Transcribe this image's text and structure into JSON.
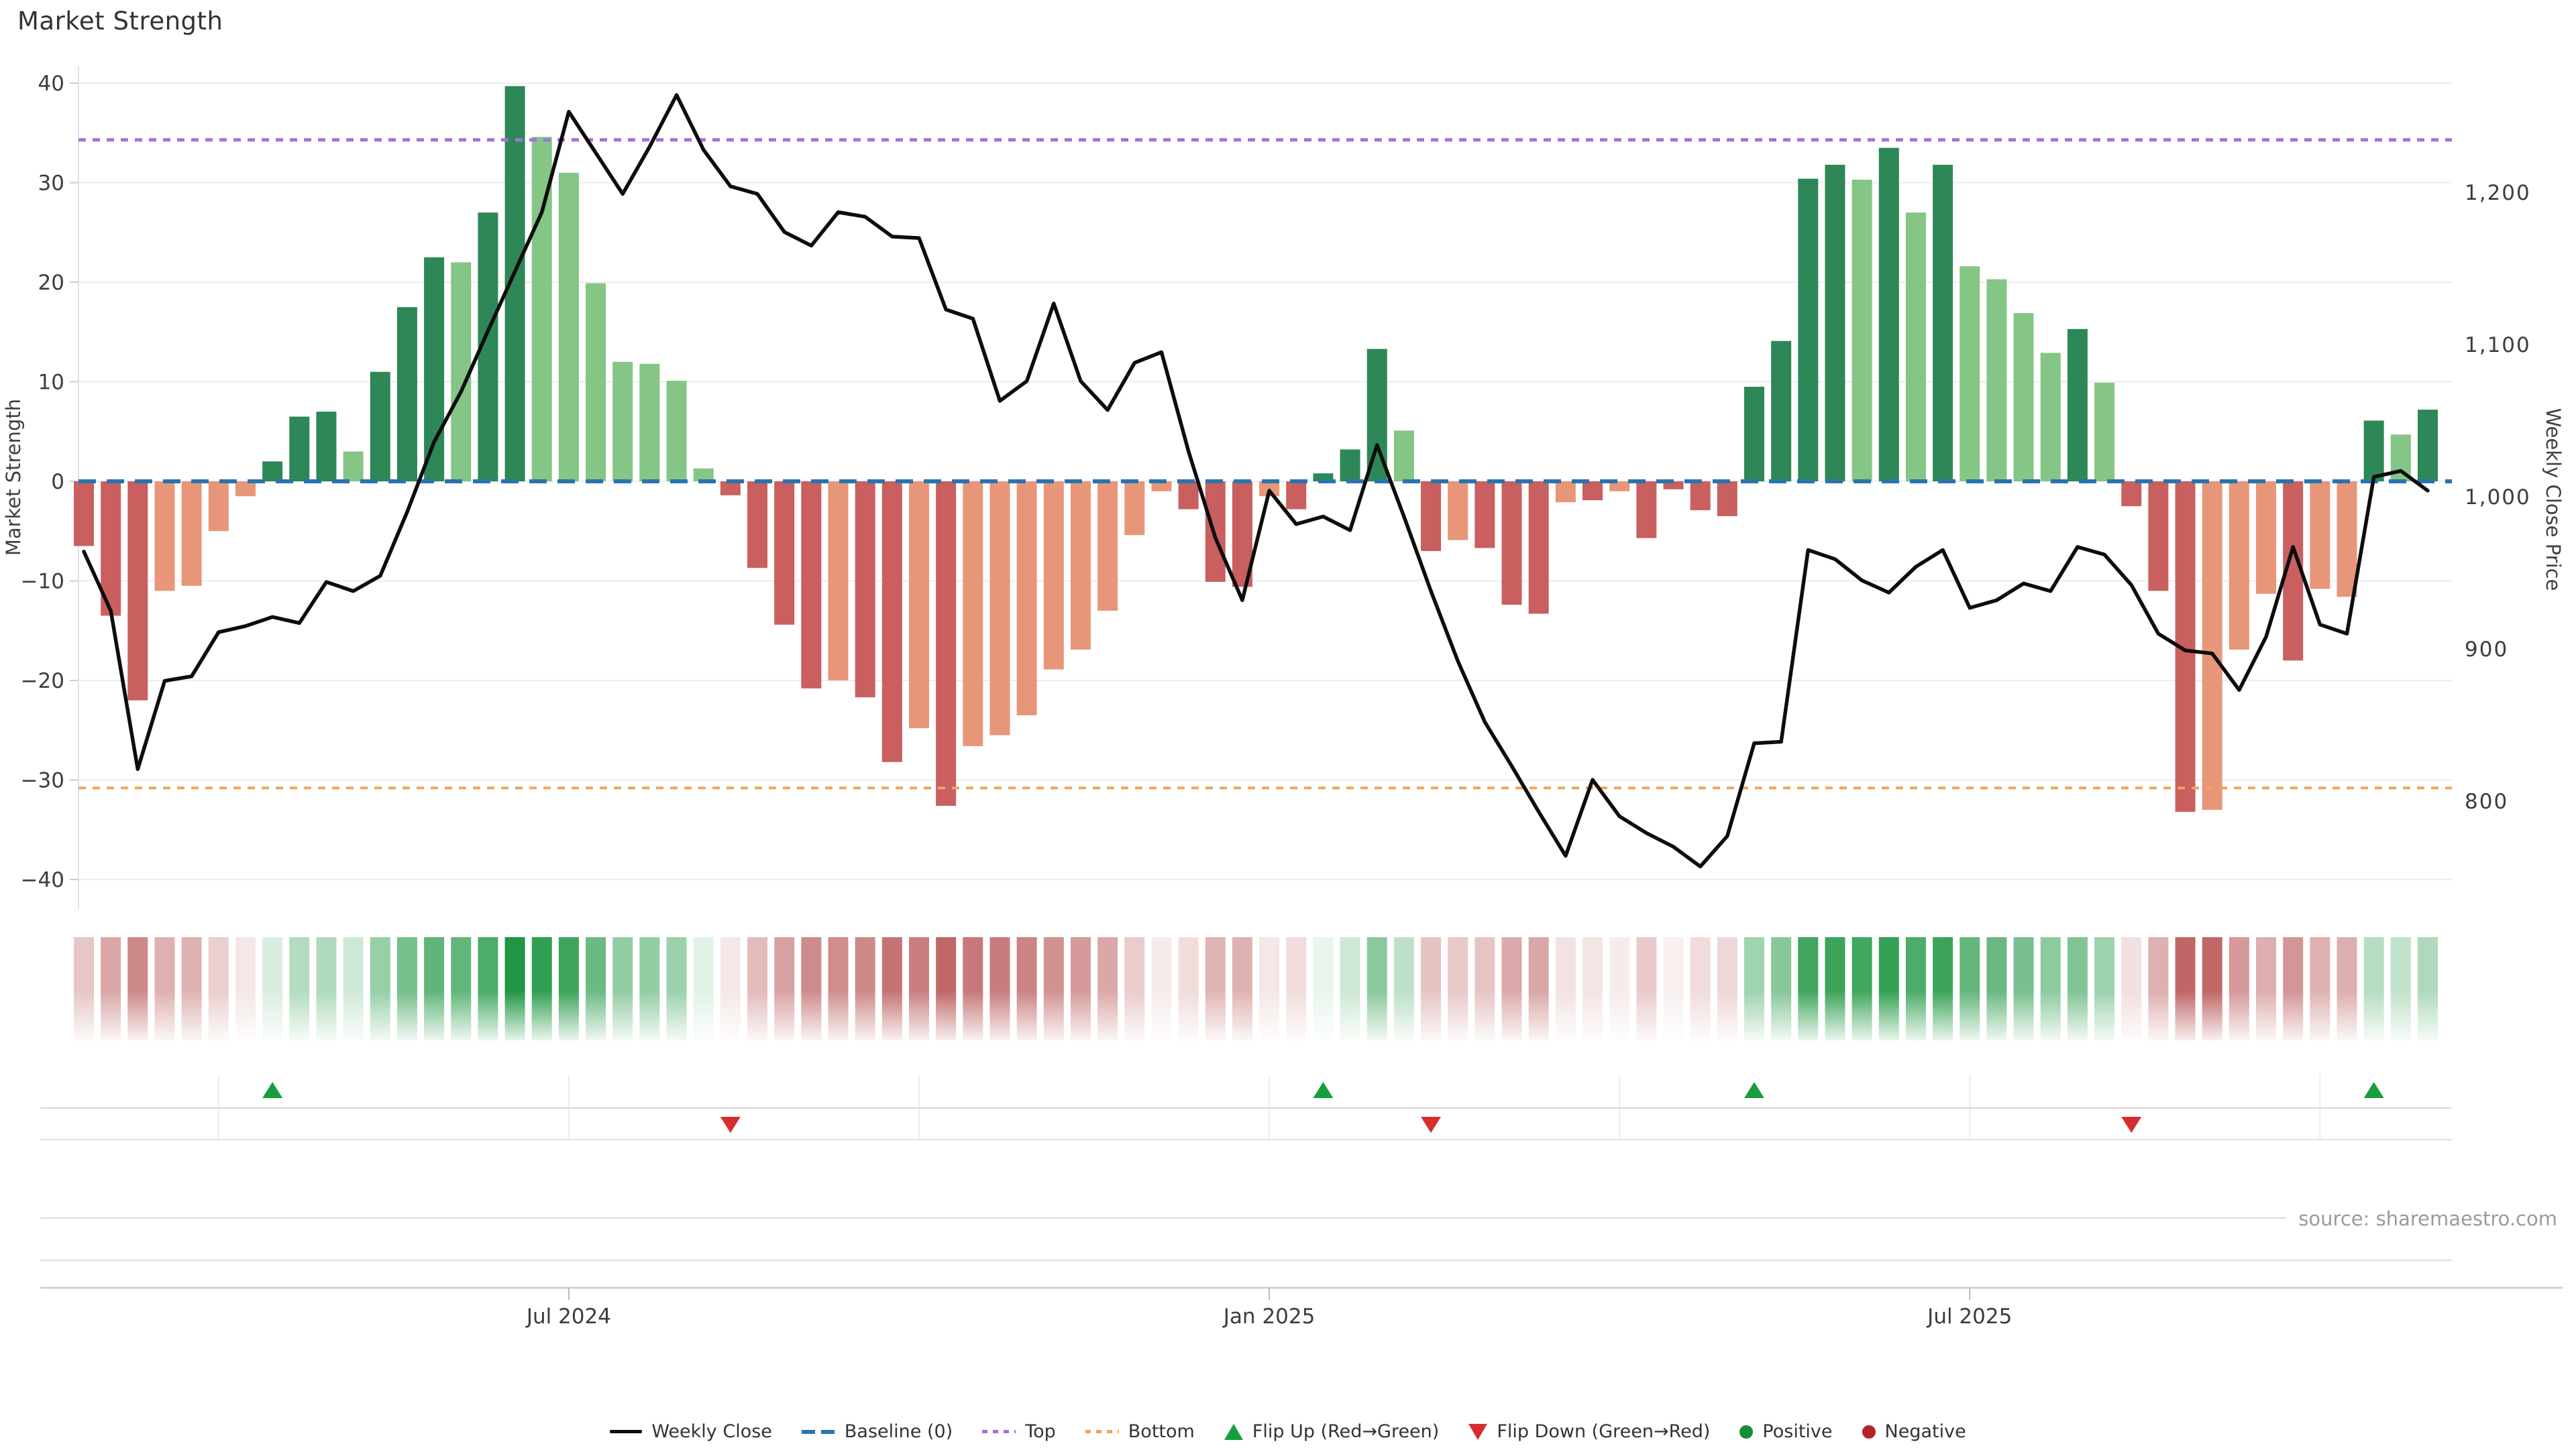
{
  "title": "Market Strength",
  "source": "source: sharemaestro.com",
  "colors": {
    "dg": "#2e8757",
    "lg": "#85c585",
    "dr": "#c95f5f",
    "sr": "#e8967a",
    "line": "#0d0d0d",
    "baseline": "#2a74ae",
    "top": "#a86fdd",
    "bottom": "#f0a35e",
    "flip_up": "#169e3e",
    "flip_down": "#d62e2e",
    "grid": "#ebedf0",
    "spine": "#dfe2e6",
    "axis_text": "#3c3c3c",
    "heat_pos": "#1e9641",
    "heat_neg": "#b85454"
  },
  "legend": {
    "items": [
      {
        "icon": "weekly-close-line-icon",
        "label": "Weekly Close"
      },
      {
        "icon": "baseline-dash-icon",
        "label": "Baseline (0)"
      },
      {
        "icon": "top-dotted-icon",
        "label": "Top"
      },
      {
        "icon": "bottom-dotted-icon",
        "label": "Bottom"
      },
      {
        "icon": "flip-up-triangle-icon",
        "label": "Flip Up (Red→Green)"
      },
      {
        "icon": "flip-down-triangle-icon",
        "label": "Flip Down (Green→Red)"
      },
      {
        "icon": "positive-circle-icon",
        "label": "Positive"
      },
      {
        "icon": "negative-circle-icon",
        "label": "Negative"
      }
    ]
  },
  "chart_data": {
    "type": "bar+line",
    "title": "Market Strength",
    "weeks": 88,
    "left_axis": {
      "label": "Market Strength",
      "range": [
        -44,
        42
      ],
      "ticks": [
        {
          "value": 40,
          "label": "40"
        },
        {
          "value": 30,
          "label": "30"
        },
        {
          "value": 20,
          "label": "20"
        },
        {
          "value": 10,
          "label": "10"
        },
        {
          "value": 0,
          "label": "0"
        },
        {
          "value": -10,
          "label": "−10"
        },
        {
          "value": -20,
          "label": "−20"
        },
        {
          "value": -30,
          "label": "−30"
        },
        {
          "value": -40,
          "label": "−40"
        }
      ]
    },
    "right_axis": {
      "label": "Weekly Close Price",
      "ticks": [
        {
          "value": 1200,
          "label": "1,200"
        },
        {
          "value": 1100,
          "label": "1,100"
        },
        {
          "value": 1000,
          "label": "1,000"
        },
        {
          "value": 900,
          "label": "900"
        },
        {
          "value": 800,
          "label": "800"
        }
      ]
    },
    "x_ticks": [
      {
        "label": "Jul 2024",
        "week": 18
      },
      {
        "label": "Jan 2025",
        "week": 44
      },
      {
        "label": "Jul 2025",
        "week": 70
      }
    ],
    "quarter_grid_weeks": [
      5,
      18,
      31,
      44,
      57,
      70,
      83
    ],
    "baseline": 0,
    "top_line": 34.3,
    "bottom_line": -30.8,
    "bars": {
      "name": "Market Strength",
      "values": [
        -6.5,
        -13.5,
        -22,
        -11,
        -10.5,
        -5,
        -1.5,
        2,
        6.5,
        7,
        3,
        11,
        17.5,
        22.5,
        22,
        27,
        39.7,
        34.6,
        31,
        19.9,
        12,
        11.8,
        10.1,
        1.3,
        -1.4,
        -8.7,
        -14.4,
        -20.8,
        -20,
        -21.7,
        -28.2,
        -24.8,
        -32.6,
        -26.6,
        -25.5,
        -23.5,
        -18.9,
        -16.9,
        -13,
        -5.4,
        -1,
        -2.8,
        -10.1,
        -10.6,
        -1.5,
        -2.8,
        0.8,
        3.2,
        13.3,
        5.1,
        -7,
        -5.9,
        -6.7,
        -12.4,
        -13.3,
        -2.1,
        -1.9,
        -1,
        -5.7,
        -0.8,
        -2.9,
        -3.5,
        9.5,
        14.1,
        30.4,
        31.8,
        30.3,
        33.5,
        27,
        31.8,
        21.6,
        20.3,
        16.9,
        12.9,
        15.3,
        9.9,
        -2.5,
        -11,
        -33.2,
        -33,
        -16.9,
        -11.3,
        -18,
        -10.8,
        -11.6,
        6.1,
        4.7,
        7.2
      ],
      "colors": [
        "dr",
        "dr",
        "dr",
        "sr",
        "sr",
        "sr",
        "sr",
        "dg",
        "dg",
        "dg",
        "lg",
        "dg",
        "dg",
        "dg",
        "lg",
        "dg",
        "dg",
        "lg",
        "lg",
        "lg",
        "lg",
        "lg",
        "lg",
        "lg",
        "dr",
        "dr",
        "dr",
        "dr",
        "sr",
        "dr",
        "dr",
        "sr",
        "dr",
        "sr",
        "sr",
        "sr",
        "sr",
        "sr",
        "sr",
        "sr",
        "sr",
        "dr",
        "dr",
        "dr",
        "sr",
        "dr",
        "dg",
        "dg",
        "dg",
        "lg",
        "dr",
        "sr",
        "dr",
        "dr",
        "dr",
        "sr",
        "dr",
        "sr",
        "dr",
        "dr",
        "dr",
        "dr",
        "dg",
        "dg",
        "dg",
        "dg",
        "lg",
        "dg",
        "lg",
        "dg",
        "lg",
        "lg",
        "lg",
        "lg",
        "dg",
        "lg",
        "dr",
        "dr",
        "dr",
        "sr",
        "sr",
        "sr",
        "dr",
        "sr",
        "sr",
        "dg",
        "lg",
        "dg"
      ]
    },
    "line": {
      "name": "Weekly Close",
      "values": [
        964,
        925,
        821,
        879,
        882,
        911,
        915,
        921,
        917,
        944,
        938,
        948,
        990,
        1036,
        1069,
        1109,
        1148,
        1187,
        1253,
        1226,
        1199,
        1230,
        1264,
        1228,
        1204,
        1199,
        1174,
        1165,
        1187,
        1184,
        1171,
        1170,
        1123,
        1117,
        1063,
        1076,
        1127,
        1076,
        1057,
        1088,
        1095,
        1030,
        973,
        932,
        1004,
        982,
        987,
        978,
        1034,
        987,
        938,
        892,
        852,
        823,
        793,
        764,
        814,
        790,
        779,
        770,
        757,
        777,
        838,
        839,
        965,
        959,
        945,
        937,
        954,
        965,
        927,
        932,
        943,
        938,
        967,
        962,
        942,
        910,
        899,
        897,
        873,
        908,
        967,
        916,
        910,
        1013,
        1017,
        1004
      ]
    },
    "flip_up_weeks": [
      7,
      46,
      62,
      85
    ],
    "flip_down_weeks": [
      24,
      50,
      76
    ],
    "heatmap": {
      "derived_from": "bars.values",
      "positive_color": "#1e9641",
      "negative_color": "#b85454"
    }
  }
}
